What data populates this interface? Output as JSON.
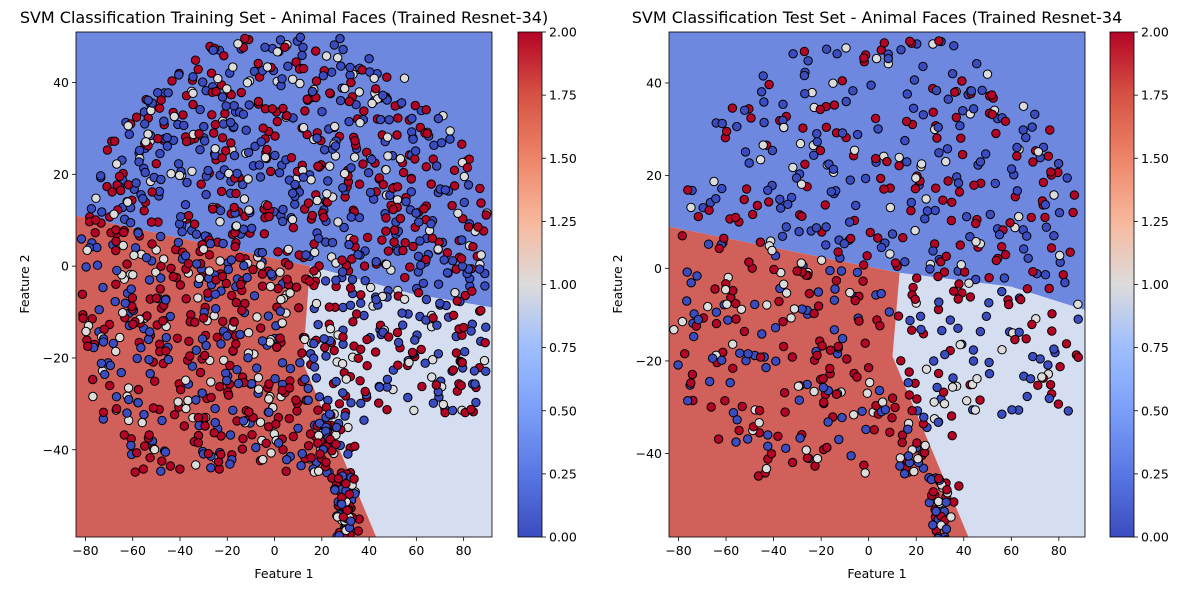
{
  "chart_data": [
    {
      "type": "scatter",
      "title": "SVM Classification Training Set - Animal Faces (Trained Resnet-34)",
      "xlabel": "Feature 1",
      "ylabel": "Feature 2",
      "xlim": [
        -84,
        92
      ],
      "ylim": [
        -59,
        51
      ],
      "xticks": [
        "−80",
        "−60",
        "−40",
        "−20",
        "0",
        "20",
        "40",
        "60",
        "80"
      ],
      "xtick_values": [
        -80,
        -60,
        -40,
        -20,
        0,
        20,
        40,
        60,
        80
      ],
      "yticks": [
        "−40",
        "−20",
        "0",
        "20",
        "40"
      ],
      "ytick_values": [
        -40,
        -20,
        0,
        20,
        40
      ],
      "colorbar": {
        "colormap": "coolwarm",
        "range": [
          0,
          2
        ],
        "ticks": [
          "0.00",
          "0.25",
          "0.50",
          "0.75",
          "1.00",
          "1.25",
          "1.50",
          "1.75",
          "2.00"
        ],
        "tick_values": [
          0,
          0.25,
          0.5,
          0.75,
          1.0,
          1.25,
          1.5,
          1.75,
          2.0
        ]
      },
      "decision_regions": [
        {
          "class": 0,
          "color": "#6e88e0",
          "polygon": [
            [
              -84,
              51
            ],
            [
              92,
              51
            ],
            [
              92,
              -9
            ],
            [
              58,
              -6
            ],
            [
              15,
              0
            ],
            [
              -84,
              11
            ]
          ]
        },
        {
          "class": 1,
          "color": "#d5ddf0",
          "polygon": [
            [
              15,
              0
            ],
            [
              58,
              -6
            ],
            [
              92,
              -9
            ],
            [
              92,
              -59
            ],
            [
              43,
              -59
            ],
            [
              12,
              -21
            ]
          ]
        },
        {
          "class": 2,
          "color": "#d1605a",
          "polygon": [
            [
              -84,
              11
            ],
            [
              15,
              0
            ],
            [
              12,
              -21
            ],
            [
              43,
              -59
            ],
            [
              -84,
              -59
            ]
          ]
        }
      ],
      "class_colors": [
        "#3b4cc0",
        "#dddcdc",
        "#b40426"
      ],
      "num_points": 1400,
      "point_seed": 7
    },
    {
      "type": "scatter",
      "title": "SVM Classification Test Set - Animal Faces (Trained Resnet-34",
      "xlabel": "Feature 1",
      "ylabel": "Feature 2",
      "xlim": [
        -84,
        91
      ],
      "ylim": [
        -58,
        51
      ],
      "xticks": [
        "−80",
        "−60",
        "−40",
        "−20",
        "0",
        "20",
        "40",
        "60",
        "80"
      ],
      "xtick_values": [
        -80,
        -60,
        -40,
        -20,
        0,
        20,
        40,
        60,
        80
      ],
      "yticks": [
        "−40",
        "−20",
        "0",
        "20",
        "40"
      ],
      "ytick_values": [
        -40,
        -20,
        0,
        20,
        40
      ],
      "colorbar": {
        "colormap": "coolwarm",
        "range": [
          0,
          2
        ],
        "ticks": [
          "0.00",
          "0.25",
          "0.50",
          "0.75",
          "1.00",
          "1.25",
          "1.50",
          "1.75",
          "2.00"
        ],
        "tick_values": [
          0,
          0.25,
          0.5,
          0.75,
          1.0,
          1.25,
          1.5,
          1.75,
          2.0
        ]
      },
      "decision_regions": [
        {
          "class": 0,
          "color": "#6e88e0",
          "polygon": [
            [
              -84,
              51
            ],
            [
              91,
              51
            ],
            [
              91,
              -9
            ],
            [
              60,
              -4
            ],
            [
              13,
              -1
            ],
            [
              -84,
              9
            ]
          ]
        },
        {
          "class": 1,
          "color": "#d5ddf0",
          "polygon": [
            [
              13,
              -1
            ],
            [
              60,
              -4
            ],
            [
              91,
              -9
            ],
            [
              91,
              -58
            ],
            [
              42,
              -58
            ],
            [
              10,
              -19
            ]
          ]
        },
        {
          "class": 2,
          "color": "#d1605a",
          "polygon": [
            [
              -84,
              9
            ],
            [
              13,
              -1
            ],
            [
              10,
              -19
            ],
            [
              42,
              -58
            ],
            [
              -84,
              -58
            ]
          ]
        }
      ],
      "class_colors": [
        "#3b4cc0",
        "#dddcdc",
        "#b40426"
      ],
      "num_points": 700,
      "point_seed": 19
    }
  ]
}
